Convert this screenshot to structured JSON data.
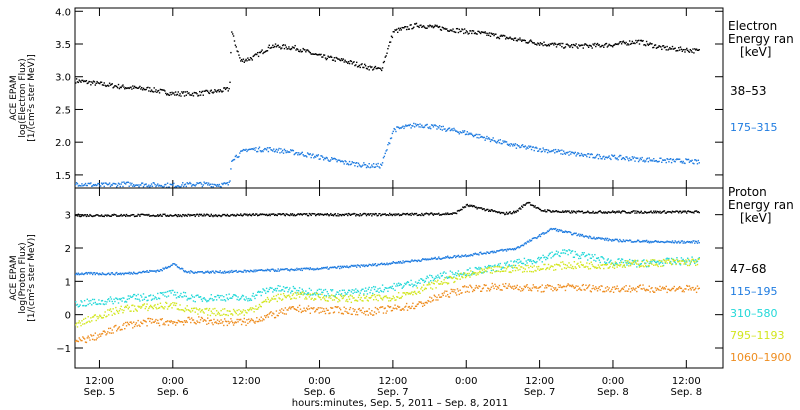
{
  "chart_data": [
    {
      "type": "scatter",
      "panel": "electron",
      "ylabel_lines": [
        "ACE EPAM",
        "log(Electron Flux)",
        "[1/(cm²s ster MeV)]"
      ],
      "ylim": [
        1.3,
        4.05
      ],
      "yticks": [
        1.5,
        2.0,
        2.5,
        3.0,
        3.5,
        4.0
      ],
      "ytick_labels": [
        "1.5",
        "2.0",
        "2.5",
        "3.0",
        "3.5",
        "4.0"
      ],
      "legend_title": [
        "Electron",
        "Energy ran",
        "[keV]"
      ],
      "series": [
        {
          "name": "38–53",
          "color": "#000000",
          "x": [
            0,
            4,
            8,
            12,
            16,
            20,
            24,
            25.2,
            25.5,
            27,
            29,
            32,
            36,
            40,
            44,
            48,
            50,
            52,
            56,
            60,
            64,
            68,
            72,
            76,
            80,
            84,
            88,
            92,
            96,
            100,
            102
          ],
          "y": [
            2.95,
            2.9,
            2.85,
            2.82,
            2.75,
            2.75,
            2.8,
            2.82,
            3.7,
            3.25,
            3.3,
            3.48,
            3.45,
            3.32,
            3.25,
            3.15,
            3.12,
            3.7,
            3.8,
            3.75,
            3.7,
            3.65,
            3.58,
            3.52,
            3.48,
            3.48,
            3.5,
            3.55,
            3.45,
            3.42,
            3.4
          ]
        },
        {
          "name": "175–315",
          "color": "#1e7be0",
          "x": [
            0,
            4,
            8,
            12,
            16,
            20,
            24,
            25.2,
            25.5,
            28,
            32,
            36,
            40,
            44,
            48,
            50,
            52,
            56,
            60,
            64,
            68,
            72,
            76,
            80,
            84,
            88,
            92,
            96,
            100,
            102
          ],
          "y": [
            1.38,
            1.35,
            1.37,
            1.36,
            1.35,
            1.37,
            1.36,
            1.37,
            1.75,
            1.9,
            1.9,
            1.85,
            1.78,
            1.7,
            1.65,
            1.65,
            2.2,
            2.28,
            2.22,
            2.15,
            2.05,
            1.95,
            1.9,
            1.85,
            1.8,
            1.78,
            1.75,
            1.73,
            1.72,
            1.7
          ]
        }
      ]
    },
    {
      "type": "scatter",
      "panel": "proton",
      "ylabel_lines": [
        "ACE EPAM",
        "log(Proton Flux)",
        "[1/(cm²s ster MeV)]"
      ],
      "ylim": [
        -1.6,
        3.8
      ],
      "yticks": [
        -1,
        0,
        1,
        2,
        3
      ],
      "ytick_labels": [
        "−1",
        "0",
        "1",
        "2",
        "3"
      ],
      "legend_title": [
        "Proton",
        "Energy ran",
        "[keV]"
      ],
      "series": [
        {
          "name": "47–68",
          "color": "#000000",
          "x": [
            0,
            8,
            16,
            24,
            32,
            40,
            48,
            56,
            62,
            64,
            70,
            72,
            74,
            76,
            80,
            88,
            96,
            102
          ],
          "y": [
            3.0,
            3.0,
            3.0,
            3.0,
            3.02,
            3.02,
            3.02,
            3.03,
            3.05,
            3.3,
            3.05,
            3.1,
            3.4,
            3.15,
            3.1,
            3.1,
            3.1,
            3.1
          ]
        },
        {
          "name": "115–195",
          "color": "#1e7be0",
          "x": [
            0,
            8,
            14,
            16,
            18,
            24,
            32,
            40,
            48,
            56,
            64,
            72,
            76,
            78,
            80,
            84,
            88,
            96,
            102
          ],
          "y": [
            1.25,
            1.25,
            1.35,
            1.55,
            1.3,
            1.3,
            1.35,
            1.4,
            1.5,
            1.65,
            1.8,
            2.0,
            2.4,
            2.6,
            2.5,
            2.35,
            2.25,
            2.2,
            2.2
          ]
        },
        {
          "name": "310–580",
          "color": "#22d8d8",
          "x": [
            0,
            4,
            8,
            12,
            16,
            20,
            24,
            28,
            32,
            36,
            40,
            44,
            48,
            52,
            56,
            60,
            64,
            68,
            72,
            76,
            80,
            84,
            88,
            92,
            96,
            102
          ],
          "y": [
            0.35,
            0.4,
            0.5,
            0.55,
            0.65,
            0.5,
            0.55,
            0.5,
            0.8,
            0.75,
            0.7,
            0.65,
            0.75,
            0.85,
            1.0,
            1.2,
            1.3,
            1.4,
            1.55,
            1.7,
            1.9,
            1.75,
            1.6,
            1.55,
            1.6,
            1.65
          ]
        },
        {
          "name": "795–1193",
          "color": "#d2e61e",
          "x": [
            0,
            4,
            8,
            12,
            16,
            20,
            24,
            28,
            32,
            36,
            40,
            44,
            48,
            52,
            56,
            60,
            64,
            68,
            72,
            76,
            80,
            84,
            88,
            92,
            96,
            102
          ],
          "y": [
            -0.3,
            0.0,
            0.2,
            0.25,
            0.3,
            0.1,
            0.1,
            0.1,
            0.5,
            0.6,
            0.55,
            0.5,
            0.5,
            0.55,
            0.75,
            1.0,
            1.2,
            1.35,
            1.4,
            1.42,
            1.5,
            1.5,
            1.52,
            1.55,
            1.58,
            1.6
          ]
        },
        {
          "name": "1060–1900",
          "color": "#ee8c1e",
          "x": [
            0,
            4,
            8,
            12,
            16,
            20,
            24,
            28,
            32,
            36,
            40,
            44,
            48,
            52,
            56,
            60,
            64,
            68,
            72,
            76,
            80,
            84,
            88,
            92,
            96,
            102
          ],
          "y": [
            -0.8,
            -0.6,
            -0.3,
            -0.2,
            -0.2,
            -0.15,
            -0.2,
            -0.2,
            0.0,
            0.2,
            0.15,
            0.15,
            0.1,
            0.2,
            0.3,
            0.6,
            0.8,
            0.85,
            0.85,
            0.8,
            0.85,
            0.82,
            0.8,
            0.8,
            0.8,
            0.78
          ]
        }
      ]
    }
  ],
  "xaxis": {
    "xlim": [
      0,
      106
    ],
    "ticks": [
      4,
      16,
      28,
      40,
      52,
      64,
      76,
      88,
      100
    ],
    "tick_labels": [
      "12:00",
      "0:00",
      "12:00",
      "0:00",
      "12:00",
      "0:00",
      "12:00",
      "0:00",
      "12:00"
    ],
    "day_labels": [
      {
        "x": 4,
        "text": "Sep. 5"
      },
      {
        "x": 16,
        "text": "Sep. 6"
      },
      {
        "x": 40,
        "text": "Sep. 6"
      },
      {
        "x": 52,
        "text": "Sep. 7"
      },
      {
        "x": 76,
        "text": "Sep. 7"
      },
      {
        "x": 88,
        "text": "Sep. 8"
      },
      {
        "x": 100,
        "text": "Sep. 8"
      }
    ],
    "xlabel": "hours:minutes, Sep.  5, 2011 – Sep.  8, 2011"
  }
}
